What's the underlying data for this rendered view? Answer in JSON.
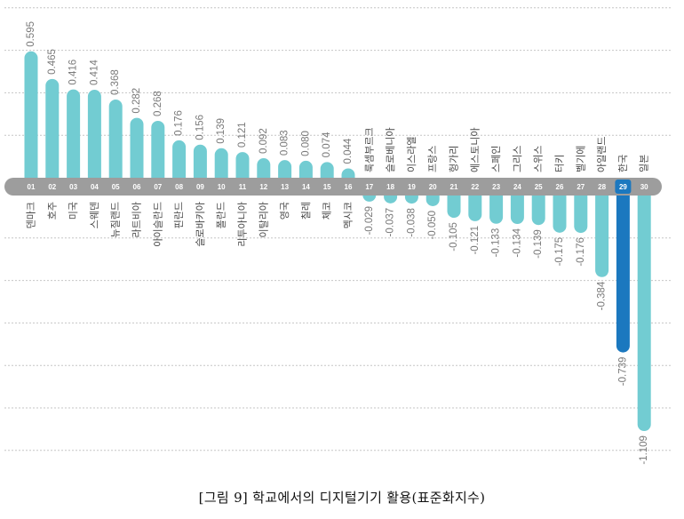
{
  "colors": {
    "bar": "#72ccd2",
    "highlight": "#1b78bf",
    "baseline": "#9d9d9d",
    "grid": "#c6c6c6"
  },
  "chart_data": {
    "type": "bar",
    "orientation": "vertical",
    "caption": "[그림 9] 학교에서의 디지털기기 활용(표준화지수)",
    "ranks": [
      "01",
      "02",
      "03",
      "04",
      "05",
      "06",
      "07",
      "08",
      "09",
      "10",
      "11",
      "12",
      "13",
      "14",
      "15",
      "16",
      "17",
      "18",
      "19",
      "20",
      "21",
      "22",
      "23",
      "24",
      "25",
      "26",
      "27",
      "28",
      "29",
      "30"
    ],
    "categories": [
      "덴마크",
      "호주",
      "미국",
      "스웨덴",
      "뉴질랜드",
      "라트비아",
      "아이슬란드",
      "핀란드",
      "슬로바키아",
      "폴란드",
      "리투아니아",
      "이탈리아",
      "영국",
      "칠레",
      "체코",
      "멕시코",
      "룩셈부르크",
      "슬로베니아",
      "이스라엘",
      "프랑스",
      "헝가리",
      "에스토니아",
      "스페인",
      "그리스",
      "스위스",
      "터키",
      "벨기에",
      "아일랜드",
      "한국",
      "일본"
    ],
    "values": [
      0.595,
      0.465,
      0.416,
      0.414,
      0.368,
      0.282,
      0.268,
      0.176,
      0.156,
      0.139,
      0.121,
      0.092,
      0.083,
      0.08,
      0.074,
      0.044,
      -0.029,
      -0.037,
      -0.038,
      -0.05,
      -0.105,
      -0.121,
      -0.133,
      -0.134,
      -0.139,
      -0.175,
      -0.176,
      -0.384,
      -0.739,
      -1.109
    ],
    "data_labels": [
      "0.595",
      "0.465",
      "0.416",
      "0.414",
      "0.368",
      "0.282",
      "0.268",
      "0.176",
      "0.156",
      "0.139",
      "0.121",
      "0.092",
      "0.083",
      "0.080",
      "0.074",
      "0.044",
      "-0.029",
      "-0.037",
      "-0.038",
      "-0.050",
      "-0.105",
      "-0.121",
      "-0.133",
      "-0.134",
      "-0.139",
      "-0.175",
      "-0.176",
      "-0.384",
      "-0.739",
      "-1.109"
    ],
    "highlight_index": 28,
    "ylim": [
      -1.2,
      0.8
    ],
    "grid": true,
    "grid_step": 0.2,
    "legend": false
  }
}
